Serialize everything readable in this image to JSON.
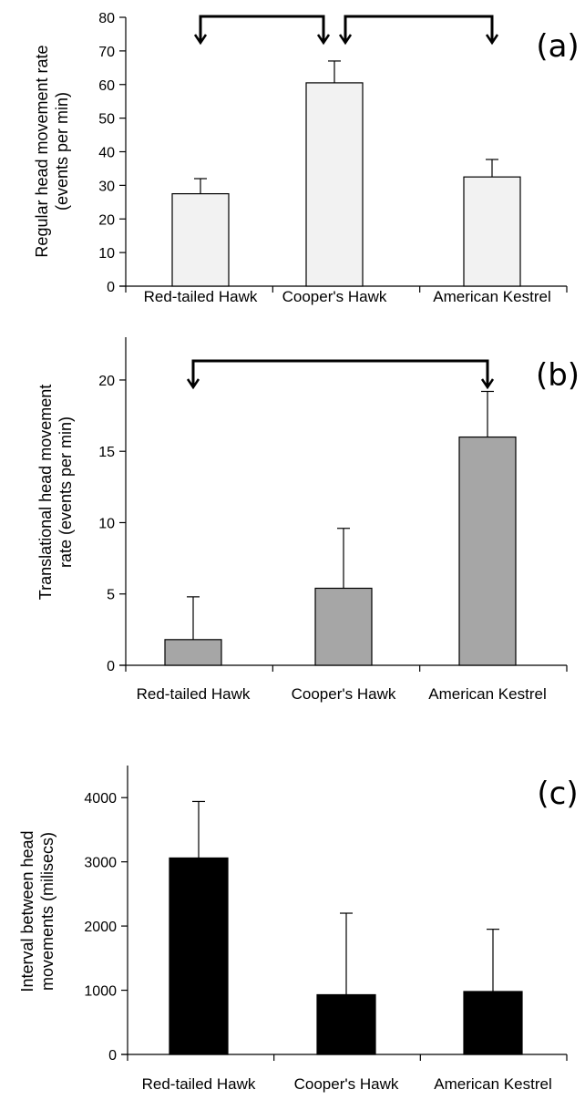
{
  "chart_data": [
    {
      "type": "bar",
      "panel_label": "(a)",
      "categories": [
        "Red-tailed Hawk",
        "Cooper's Hawk",
        "American Kestrel"
      ],
      "values": [
        27.5,
        60.5,
        32.5
      ],
      "errors": [
        4.5,
        6.5,
        5.2
      ],
      "bar_color": "#f2f2f2",
      "ylabel_lines": [
        "Regular head movement rate",
        "(events per min)"
      ],
      "ylim": [
        0,
        80
      ],
      "yticks": [
        0,
        10,
        20,
        30,
        40,
        50,
        60,
        70,
        80
      ],
      "significance": [
        [
          0,
          1
        ],
        [
          1,
          2
        ]
      ],
      "grid": false
    },
    {
      "type": "bar",
      "panel_label": "(b)",
      "categories": [
        "Red-tailed Hawk",
        "Cooper's Hawk",
        "American Kestrel"
      ],
      "values": [
        1.8,
        5.4,
        16.0
      ],
      "errors": [
        3.0,
        4.2,
        3.2
      ],
      "bar_color": "#a6a6a6",
      "ylabel_lines": [
        "Translational head movement",
        "rate (events per min)"
      ],
      "ylim": [
        0,
        23
      ],
      "yticks": [
        0,
        5,
        10,
        15,
        20
      ],
      "significance": [
        [
          0,
          2
        ]
      ],
      "grid": false
    },
    {
      "type": "bar",
      "panel_label": "(c)",
      "categories": [
        "Red-tailed Hawk",
        "Cooper's Hawk",
        "American Kestrel"
      ],
      "values": [
        3060,
        930,
        980
      ],
      "errors": [
        880,
        1270,
        970
      ],
      "bar_color": "#000000",
      "ylabel_lines": [
        "Interval between head",
        "movements (milisecs)"
      ],
      "ylim": [
        0,
        4500
      ],
      "yticks": [
        0,
        1000,
        2000,
        3000,
        4000
      ],
      "significance": [],
      "grid": false
    }
  ]
}
